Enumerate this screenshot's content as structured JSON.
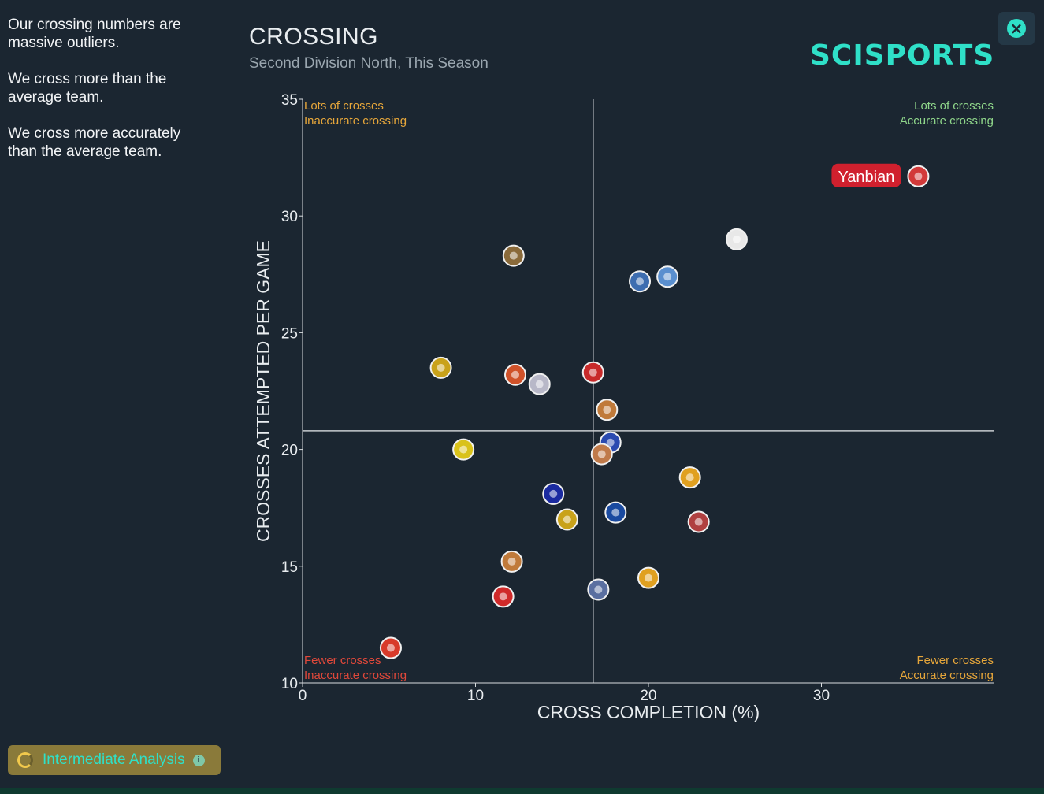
{
  "notes": [
    "Our crossing numbers are massive outliers.",
    "We cross more than the average team.",
    "We cross more accurately than the average team."
  ],
  "header": {
    "title": "CROSSING",
    "subtitle": "Second Division North, This Season",
    "logo": "SCISPORTS"
  },
  "close_icon": "close-icon",
  "footer": {
    "analysis_label": "Intermediate Analysis",
    "info_icon": "info-icon"
  },
  "colors": {
    "background": "#1b2631",
    "accent": "#2fe0c8",
    "highlight": "#d0202e",
    "grid": "#c8ccd0"
  },
  "chart_data": {
    "type": "scatter",
    "title": "CROSSING",
    "xlabel": "CROSS COMPLETION (%)",
    "ylabel": "CROSSES ATTEMPTED PER GAME",
    "xlim": [
      0,
      40
    ],
    "ylim": [
      10,
      35
    ],
    "xticks": [
      "0",
      "10",
      "20",
      "30"
    ],
    "yticks": [
      "10",
      "15",
      "20",
      "25",
      "30",
      "35"
    ],
    "average": {
      "x": 16.8,
      "y": 20.8
    },
    "quadrants": {
      "top_left": [
        "Lots of crosses",
        "Inaccurate crossing"
      ],
      "top_right": [
        "Lots of crosses",
        "Accurate crossing"
      ],
      "bottom_left": [
        "Fewer crosses",
        "Inaccurate crossing"
      ],
      "bottom_right": [
        "Fewer crosses",
        "Accurate crossing"
      ]
    },
    "highlight_label": "Yanbian",
    "points": [
      {
        "x": 35.6,
        "y": 31.7,
        "color": "#d23a3a",
        "highlight": true
      },
      {
        "x": 25.1,
        "y": 29.0,
        "color": "#e8e8e8"
      },
      {
        "x": 21.1,
        "y": 27.4,
        "color": "#5a8fcf"
      },
      {
        "x": 19.5,
        "y": 27.2,
        "color": "#3d6db0"
      },
      {
        "x": 12.2,
        "y": 28.3,
        "color": "#8a6a3a"
      },
      {
        "x": 8.0,
        "y": 23.5,
        "color": "#c9a21a"
      },
      {
        "x": 12.3,
        "y": 23.2,
        "color": "#d0522a"
      },
      {
        "x": 13.7,
        "y": 22.8,
        "color": "#b8b8c8"
      },
      {
        "x": 16.8,
        "y": 23.3,
        "color": "#c82a2a"
      },
      {
        "x": 17.6,
        "y": 21.7,
        "color": "#c07a3a"
      },
      {
        "x": 9.3,
        "y": 20.0,
        "color": "#d9c21a"
      },
      {
        "x": 17.8,
        "y": 20.3,
        "color": "#2a4ab0"
      },
      {
        "x": 17.3,
        "y": 19.8,
        "color": "#c07a4a"
      },
      {
        "x": 22.4,
        "y": 18.8,
        "color": "#e0a020"
      },
      {
        "x": 14.5,
        "y": 18.1,
        "color": "#1a2aa0"
      },
      {
        "x": 15.3,
        "y": 17.0,
        "color": "#c9a21a"
      },
      {
        "x": 18.1,
        "y": 17.3,
        "color": "#1a4aa0"
      },
      {
        "x": 22.9,
        "y": 16.9,
        "color": "#b04040"
      },
      {
        "x": 12.1,
        "y": 15.2,
        "color": "#c07a3a"
      },
      {
        "x": 20.0,
        "y": 14.5,
        "color": "#e0a020"
      },
      {
        "x": 17.1,
        "y": 14.0,
        "color": "#5a6fa0"
      },
      {
        "x": 11.6,
        "y": 13.7,
        "color": "#d02a2a"
      },
      {
        "x": 5.1,
        "y": 11.5,
        "color": "#d83a2a"
      }
    ]
  }
}
